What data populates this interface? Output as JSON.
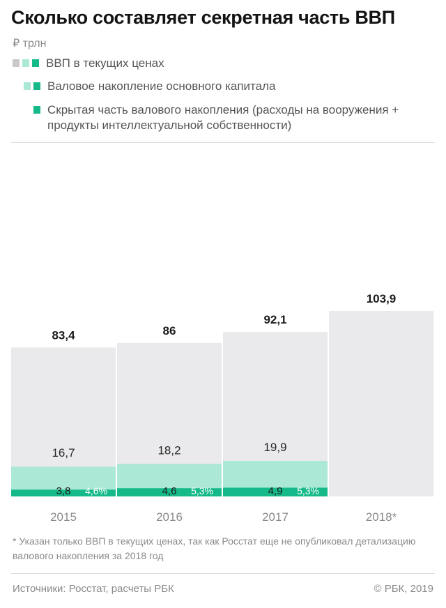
{
  "title": "Сколько составляет секретная часть ВВП",
  "unit": "₽ трлн",
  "colors": {
    "gdp": "#eae9eb",
    "gfcf": "#abe8d6",
    "hidden": "#16b98a",
    "legend_gray": "#c9c8cb"
  },
  "legend": [
    {
      "label": "ВВП в текущих ценах"
    },
    {
      "label": "Валовое накопление основного капитала"
    },
    {
      "label": "Скрытая часть валового накопления (расходы на вооружения + продукты интеллектуальной собственности)"
    }
  ],
  "chart_data": {
    "type": "bar",
    "categories": [
      "2015",
      "2016",
      "2017",
      "2018*"
    ],
    "series": [
      {
        "name": "ВВП в текущих ценах",
        "values": [
          83.4,
          86,
          92.1,
          103.9
        ],
        "labels": [
          "83,4",
          "86",
          "92,1",
          "103,9"
        ]
      },
      {
        "name": "Валовое накопление основного капитала",
        "values": [
          16.7,
          18.2,
          19.9,
          null
        ],
        "labels": [
          "16,7",
          "18,2",
          "19,9",
          ""
        ]
      },
      {
        "name": "Скрытая часть валового накопления (расходы на вооружения + продукты интеллектуальной собственности)",
        "values": [
          3.8,
          4.6,
          4.9,
          null
        ],
        "labels": [
          "3,8",
          "4,6",
          "4,9",
          ""
        ],
        "share_labels": [
          "4,6%",
          "5,3%",
          "5,3%",
          ""
        ]
      }
    ],
    "ylim": [
      0,
      103.9
    ],
    "grid": false
  },
  "footnote": "* Указан только ВВП в текущих ценах, так как Росстат еще не опубликовал детализацию валового накопления за 2018 год",
  "sources": "Источники: Росстат, расчеты РБК",
  "copyright": "© РБК, 2019"
}
